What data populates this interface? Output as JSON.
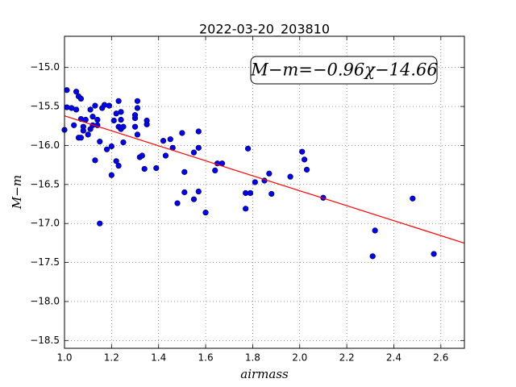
{
  "chart_data": {
    "type": "scatter",
    "title": "2022-03-20_203810",
    "annotation": "M−m=−0.96χ−14.66",
    "x_label": "airmass",
    "y_label": "M−m",
    "marker_color": "#0000ff",
    "fit": {
      "color": "#ff0000",
      "x": [
        1.0,
        2.7
      ],
      "values": [
        -15.62,
        -17.252
      ]
    },
    "x": [
      1.0,
      1.01,
      1.01,
      1.03,
      1.04,
      1.05,
      1.05,
      1.06,
      1.07,
      1.06,
      1.07,
      1.07,
      1.08,
      1.08,
      1.09,
      1.1,
      1.11,
      1.11,
      1.12,
      1.12,
      1.13,
      1.13,
      1.14,
      1.14,
      1.15,
      1.15,
      1.16,
      1.17,
      1.18,
      1.19,
      1.2,
      1.2,
      1.21,
      1.22,
      1.22,
      1.23,
      1.23,
      1.23,
      1.24,
      1.24,
      1.24,
      1.25,
      1.25,
      1.3,
      1.3,
      1.3,
      1.31,
      1.31,
      1.31,
      1.32,
      1.33,
      1.34,
      1.35,
      1.35,
      1.39,
      1.42,
      1.43,
      1.45,
      1.46,
      1.48,
      1.5,
      1.51,
      1.51,
      1.55,
      1.55,
      1.57,
      1.57,
      1.57,
      1.6,
      1.64,
      1.65,
      1.67,
      1.77,
      1.77,
      1.78,
      1.79,
      1.81,
      1.85,
      1.87,
      1.88,
      1.96,
      2.01,
      2.02,
      2.03,
      2.1,
      2.31,
      2.32,
      2.48,
      2.57
    ],
    "values": [
      -15.8,
      -15.29,
      -15.51,
      -15.52,
      -15.74,
      -15.31,
      -15.54,
      -15.37,
      -15.66,
      -15.9,
      -15.9,
      -15.4,
      -15.76,
      -15.81,
      -15.67,
      -15.86,
      -15.54,
      -15.79,
      -15.74,
      -15.63,
      -15.49,
      -16.19,
      -15.74,
      -15.67,
      -15.95,
      -17.0,
      -15.52,
      -15.48,
      -16.05,
      -15.49,
      -16.01,
      -16.38,
      -15.68,
      -16.2,
      -15.59,
      -16.26,
      -15.43,
      -15.76,
      -15.79,
      -15.57,
      -15.67,
      -15.96,
      -15.76,
      -15.76,
      -15.65,
      -15.61,
      -15.43,
      -15.52,
      -15.86,
      -16.15,
      -16.13,
      -16.3,
      -15.68,
      -15.73,
      -16.29,
      -15.94,
      -16.13,
      -15.92,
      -16.03,
      -16.74,
      -15.84,
      -16.34,
      -16.6,
      -16.09,
      -16.69,
      -16.59,
      -15.82,
      -16.03,
      -16.86,
      -16.32,
      -16.23,
      -16.23,
      -16.61,
      -16.81,
      -16.04,
      -16.61,
      -16.47,
      -16.45,
      -16.36,
      -16.62,
      -16.4,
      -16.08,
      -16.18,
      -16.31,
      -16.67,
      -17.42,
      -17.09,
      -16.68,
      -17.39
    ],
    "xlim": [
      1.0,
      2.7
    ],
    "ylim": [
      -18.6,
      -14.6
    ],
    "xticks": [
      {
        "value": 1.0,
        "label": "1.0"
      },
      {
        "value": 1.2,
        "label": "1.2"
      },
      {
        "value": 1.4,
        "label": "1.4"
      },
      {
        "value": 1.6,
        "label": "1.6"
      },
      {
        "value": 1.8,
        "label": "1.8"
      },
      {
        "value": 2.0,
        "label": "2.0"
      },
      {
        "value": 2.2,
        "label": "2.2"
      },
      {
        "value": 2.4,
        "label": "2.4"
      },
      {
        "value": 2.6,
        "label": "2.6"
      }
    ],
    "yticks": [
      {
        "value": -15.0,
        "label": "−15.0"
      },
      {
        "value": -15.5,
        "label": "−15.5"
      },
      {
        "value": -16.0,
        "label": "−16.0"
      },
      {
        "value": -16.5,
        "label": "−16.5"
      },
      {
        "value": -17.0,
        "label": "−17.0"
      },
      {
        "value": -17.5,
        "label": "−17.5"
      },
      {
        "value": -18.0,
        "label": "−18.0"
      },
      {
        "value": -18.5,
        "label": "−18.5"
      }
    ],
    "grid": true
  }
}
